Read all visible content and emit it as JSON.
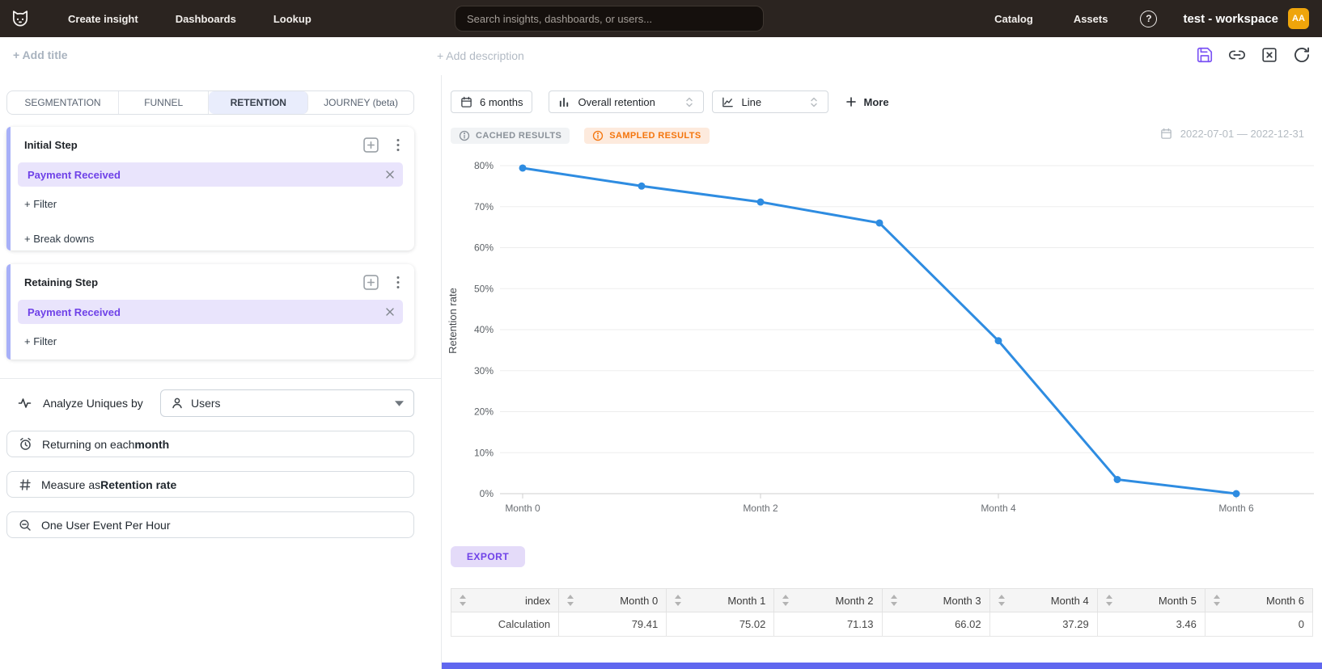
{
  "navbar": {
    "links": [
      "Create insight",
      "Dashboards",
      "Lookup"
    ],
    "search": {
      "placeholder": "Search insights, dashboards, or users..."
    },
    "right_links": [
      "Catalog",
      "Assets"
    ],
    "help_glyph": "?",
    "workspace_name": "test - workspace",
    "avatar_initials": "AA",
    "avatar_color": "#efa50b"
  },
  "toolbar": {
    "add_title": "+ Add title",
    "add_description": "+ Add description",
    "icons": [
      "save-icon",
      "link-icon",
      "close-box-icon",
      "refresh-icon"
    ],
    "save_icon_color": "#7a52f4"
  },
  "sidebar": {
    "tabs": [
      {
        "label": "SEGMENTATION",
        "active": false
      },
      {
        "label": "FUNNEL",
        "active": false
      },
      {
        "label": "RETENTION",
        "active": true
      },
      {
        "label": "JOURNEY (beta)",
        "active": false
      }
    ],
    "initial_step": {
      "title": "Initial Step",
      "event": "Payment Received",
      "filter_action": "+ Filter",
      "breakdown_action": "+ Break downs"
    },
    "retaining_step": {
      "title": "Retaining Step",
      "event": "Payment Received",
      "filter_action": "+ Filter"
    },
    "analyze": {
      "label": "Analyze Uniques by",
      "value": "Users"
    },
    "returning_button": {
      "prefix": "Returning on each ",
      "bold": "month"
    },
    "measure_button": {
      "prefix": "Measure as ",
      "bold": "Retention rate"
    },
    "dedupe_button": {
      "label": "One User Event Per Hour"
    },
    "accent_color": "#a7b0f8",
    "event_pill_color": "#6f42e8"
  },
  "controls": {
    "time_window": "6 months",
    "metric": "Overall retention",
    "chart_type": "Line",
    "more": "More"
  },
  "status": {
    "cached": "CACHED RESULTS",
    "sampled": "SAMPLED RESULTS",
    "sampled_color": "#f4750d",
    "date_range": "2022-07-01 — 2022-12-31"
  },
  "chart_data": {
    "type": "line",
    "categories": [
      "Month 0",
      "Month 1",
      "Month 2",
      "Month 3",
      "Month 4",
      "Month 5",
      "Month 6"
    ],
    "series": [
      {
        "name": "Retention rate",
        "values": [
          79.41,
          75.02,
          71.13,
          66.02,
          37.29,
          3.46,
          0
        ]
      }
    ],
    "ylabel": "Retention rate",
    "ytick_labels": [
      "0%",
      "10%",
      "20%",
      "30%",
      "40%",
      "50%",
      "60%",
      "70%",
      "80%"
    ],
    "ylim": [
      0,
      84
    ],
    "x_labels_shown_every": 2,
    "grid": "horizontal",
    "legend": "none",
    "line_color": "#2e8ce1"
  },
  "export_label": "EXPORT",
  "table": {
    "columns": [
      "index",
      "Month 0",
      "Month 1",
      "Month 2",
      "Month 3",
      "Month 4",
      "Month 5",
      "Month 6"
    ],
    "rows": [
      [
        "Calculation",
        "79.41",
        "75.02",
        "71.13",
        "66.02",
        "37.29",
        "3.46",
        "0"
      ]
    ]
  }
}
